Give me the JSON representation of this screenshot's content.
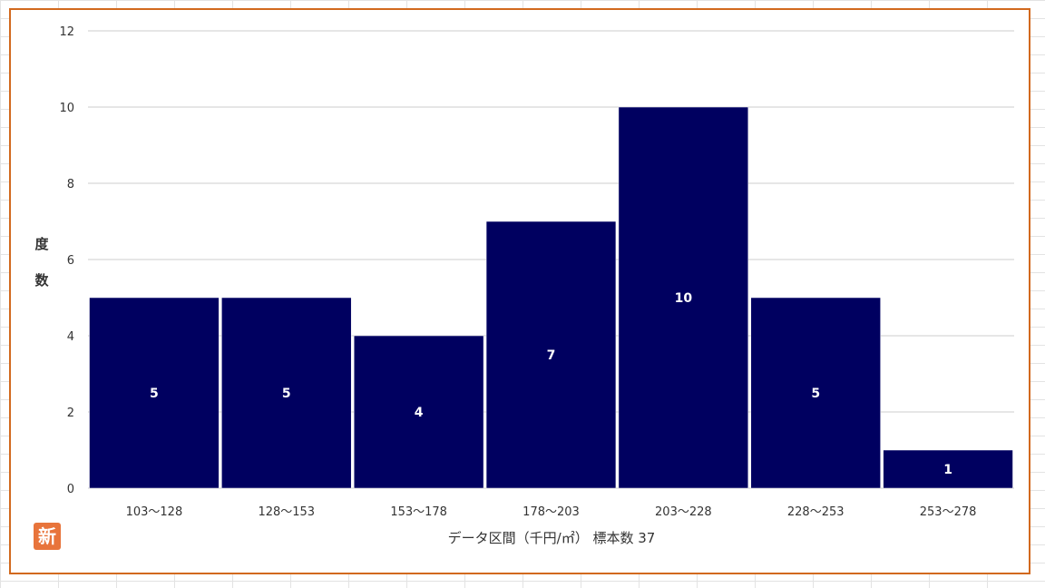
{
  "chart_data": {
    "type": "bar",
    "categories": [
      "103～128",
      "128～153",
      "153～178",
      "178～203",
      "203～228",
      "228～253",
      "253～278"
    ],
    "values": [
      5,
      5,
      4,
      7,
      10,
      5,
      1
    ],
    "data_labels": [
      "5",
      "5",
      "4",
      "7",
      "10",
      "5",
      "1"
    ],
    "title": "",
    "xlabel": "データ区間（千円/㎡） 標本数 37",
    "ylabel": "度数",
    "ylim": [
      0,
      12
    ],
    "yticks": [
      0,
      2,
      4,
      6,
      8,
      10,
      12
    ],
    "grid": true,
    "legend": "none",
    "colors": {
      "bar": "#000060",
      "grid": "#dddddd",
      "frame": "#d2691e",
      "label": "#ffffff",
      "axis_text": "#333333"
    }
  },
  "badge": {
    "text": "新",
    "color": "#e8743b"
  }
}
